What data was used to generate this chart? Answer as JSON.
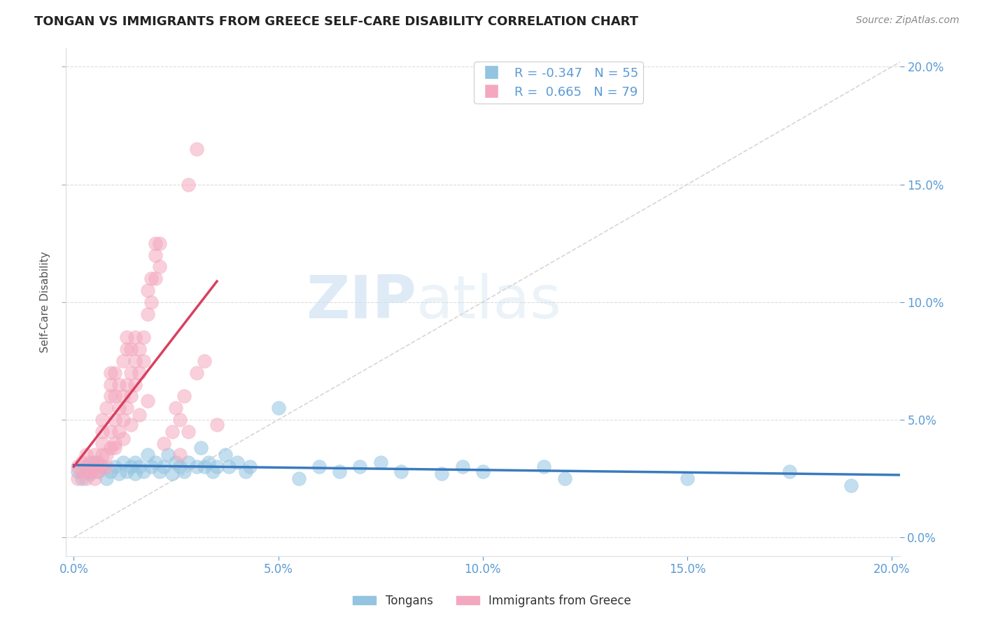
{
  "title": "TONGAN VS IMMIGRANTS FROM GREECE SELF-CARE DISABILITY CORRELATION CHART",
  "source": "Source: ZipAtlas.com",
  "ylabel": "Self-Care Disability",
  "legend_label1": "Tongans",
  "legend_label2": "Immigrants from Greece",
  "r1": "-0.347",
  "n1": "55",
  "r2": "0.665",
  "n2": "79",
  "xlim": [
    -0.002,
    0.202
  ],
  "ylim": [
    -0.008,
    0.208
  ],
  "color_blue": "#93c4e0",
  "color_pink": "#f4a8bf",
  "color_trendline_blue": "#3a7abf",
  "color_trendline_pink": "#d94060",
  "color_diagonal": "#cccccc",
  "title_color": "#222222",
  "tick_color": "#5b9bd5",
  "grid_color": "#dddddd",
  "blue_points": [
    [
      0.001,
      0.028
    ],
    [
      0.002,
      0.025
    ],
    [
      0.003,
      0.03
    ],
    [
      0.004,
      0.027
    ],
    [
      0.005,
      0.032
    ],
    [
      0.006,
      0.028
    ],
    [
      0.007,
      0.03
    ],
    [
      0.008,
      0.025
    ],
    [
      0.009,
      0.028
    ],
    [
      0.01,
      0.03
    ],
    [
      0.011,
      0.027
    ],
    [
      0.012,
      0.032
    ],
    [
      0.013,
      0.028
    ],
    [
      0.014,
      0.03
    ],
    [
      0.015,
      0.032
    ],
    [
      0.015,
      0.027
    ],
    [
      0.016,
      0.03
    ],
    [
      0.017,
      0.028
    ],
    [
      0.018,
      0.035
    ],
    [
      0.019,
      0.03
    ],
    [
      0.02,
      0.032
    ],
    [
      0.021,
      0.028
    ],
    [
      0.022,
      0.03
    ],
    [
      0.023,
      0.035
    ],
    [
      0.024,
      0.027
    ],
    [
      0.025,
      0.032
    ],
    [
      0.026,
      0.03
    ],
    [
      0.027,
      0.028
    ],
    [
      0.028,
      0.032
    ],
    [
      0.03,
      0.03
    ],
    [
      0.031,
      0.038
    ],
    [
      0.032,
      0.03
    ],
    [
      0.033,
      0.032
    ],
    [
      0.034,
      0.028
    ],
    [
      0.035,
      0.03
    ],
    [
      0.037,
      0.035
    ],
    [
      0.038,
      0.03
    ],
    [
      0.04,
      0.032
    ],
    [
      0.042,
      0.028
    ],
    [
      0.043,
      0.03
    ],
    [
      0.05,
      0.055
    ],
    [
      0.055,
      0.025
    ],
    [
      0.06,
      0.03
    ],
    [
      0.065,
      0.028
    ],
    [
      0.07,
      0.03
    ],
    [
      0.075,
      0.032
    ],
    [
      0.08,
      0.028
    ],
    [
      0.09,
      0.027
    ],
    [
      0.095,
      0.03
    ],
    [
      0.1,
      0.028
    ],
    [
      0.115,
      0.03
    ],
    [
      0.12,
      0.025
    ],
    [
      0.15,
      0.025
    ],
    [
      0.175,
      0.028
    ],
    [
      0.19,
      0.022
    ]
  ],
  "pink_points": [
    [
      0.001,
      0.025
    ],
    [
      0.001,
      0.03
    ],
    [
      0.002,
      0.028
    ],
    [
      0.002,
      0.032
    ],
    [
      0.003,
      0.03
    ],
    [
      0.003,
      0.025
    ],
    [
      0.003,
      0.035
    ],
    [
      0.004,
      0.028
    ],
    [
      0.004,
      0.032
    ],
    [
      0.005,
      0.03
    ],
    [
      0.005,
      0.035
    ],
    [
      0.005,
      0.025
    ],
    [
      0.006,
      0.032
    ],
    [
      0.006,
      0.028
    ],
    [
      0.007,
      0.035
    ],
    [
      0.007,
      0.03
    ],
    [
      0.007,
      0.04
    ],
    [
      0.007,
      0.045
    ],
    [
      0.007,
      0.05
    ],
    [
      0.008,
      0.035
    ],
    [
      0.008,
      0.03
    ],
    [
      0.008,
      0.055
    ],
    [
      0.009,
      0.038
    ],
    [
      0.009,
      0.045
    ],
    [
      0.009,
      0.06
    ],
    [
      0.009,
      0.065
    ],
    [
      0.009,
      0.07
    ],
    [
      0.01,
      0.04
    ],
    [
      0.01,
      0.05
    ],
    [
      0.01,
      0.06
    ],
    [
      0.01,
      0.07
    ],
    [
      0.011,
      0.045
    ],
    [
      0.011,
      0.055
    ],
    [
      0.011,
      0.065
    ],
    [
      0.012,
      0.05
    ],
    [
      0.012,
      0.06
    ],
    [
      0.012,
      0.075
    ],
    [
      0.013,
      0.055
    ],
    [
      0.013,
      0.065
    ],
    [
      0.013,
      0.08
    ],
    [
      0.013,
      0.085
    ],
    [
      0.014,
      0.06
    ],
    [
      0.014,
      0.07
    ],
    [
      0.014,
      0.08
    ],
    [
      0.015,
      0.065
    ],
    [
      0.015,
      0.075
    ],
    [
      0.015,
      0.085
    ],
    [
      0.016,
      0.07
    ],
    [
      0.016,
      0.08
    ],
    [
      0.017,
      0.075
    ],
    [
      0.017,
      0.085
    ],
    [
      0.018,
      0.095
    ],
    [
      0.018,
      0.105
    ],
    [
      0.019,
      0.1
    ],
    [
      0.019,
      0.11
    ],
    [
      0.02,
      0.11
    ],
    [
      0.02,
      0.12
    ],
    [
      0.02,
      0.125
    ],
    [
      0.021,
      0.115
    ],
    [
      0.021,
      0.125
    ],
    [
      0.025,
      0.055
    ],
    [
      0.026,
      0.05
    ],
    [
      0.027,
      0.06
    ],
    [
      0.028,
      0.045
    ],
    [
      0.03,
      0.07
    ],
    [
      0.032,
      0.075
    ],
    [
      0.028,
      0.15
    ],
    [
      0.03,
      0.165
    ],
    [
      0.035,
      0.048
    ],
    [
      0.01,
      0.038
    ],
    [
      0.012,
      0.042
    ],
    [
      0.014,
      0.048
    ],
    [
      0.016,
      0.052
    ],
    [
      0.018,
      0.058
    ],
    [
      0.004,
      0.028
    ],
    [
      0.006,
      0.03
    ],
    [
      0.022,
      0.04
    ],
    [
      0.024,
      0.045
    ],
    [
      0.026,
      0.035
    ]
  ]
}
